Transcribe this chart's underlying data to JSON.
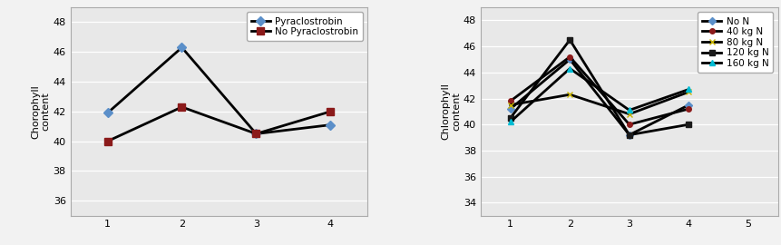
{
  "chart_a": {
    "ylabel": "Chorophyll\ncontent",
    "x": [
      1,
      2,
      3,
      4
    ],
    "series": [
      {
        "label": "Pyraclostrobin",
        "values": [
          41.9,
          46.3,
          40.5,
          41.1
        ],
        "color": "#000000",
        "marker": "D",
        "marker_facecolor": "#5b8fc9",
        "marker_edgecolor": "#5b8fc9",
        "linewidth": 2.0,
        "markersize": 5
      },
      {
        "label": "No Pyraclostrobin",
        "values": [
          40.0,
          42.3,
          40.5,
          42.0
        ],
        "color": "#000000",
        "marker": "s",
        "marker_facecolor": "#8b1a1a",
        "marker_edgecolor": "#8b1a1a",
        "linewidth": 2.0,
        "markersize": 6
      }
    ],
    "ylim": [
      35,
      49
    ],
    "yticks": [
      36,
      38,
      40,
      42,
      44,
      46,
      48
    ],
    "xlim": [
      0.5,
      4.5
    ],
    "xticks": [
      1,
      2,
      3,
      4
    ]
  },
  "chart_b": {
    "ylabel": "Chlorophyll\ncontent",
    "x": [
      1,
      2,
      3,
      4,
      5
    ],
    "series": [
      {
        "label": "No N",
        "values": [
          41.2,
          45.0,
          39.2,
          41.5,
          null
        ],
        "color": "#000000",
        "marker": "D",
        "marker_facecolor": "#5b8fc9",
        "marker_edgecolor": "#5b8fc9",
        "linewidth": 2.0,
        "markersize": 4
      },
      {
        "label": "40 kg N",
        "values": [
          41.8,
          45.2,
          40.0,
          41.2,
          null
        ],
        "color": "#000000",
        "marker": "o",
        "marker_facecolor": "#8b1a1a",
        "marker_edgecolor": "#8b1a1a",
        "linewidth": 2.0,
        "markersize": 4
      },
      {
        "label": "80 kg N",
        "values": [
          41.5,
          42.3,
          40.8,
          42.5,
          null
        ],
        "color": "#000000",
        "marker": "x",
        "marker_facecolor": "#c8b400",
        "marker_edgecolor": "#c8b400",
        "linewidth": 2.0,
        "markersize": 5
      },
      {
        "label": "120 kg N",
        "values": [
          40.5,
          46.5,
          39.2,
          40.0,
          null
        ],
        "color": "#000000",
        "marker": "s",
        "marker_facecolor": "#1a1a1a",
        "marker_edgecolor": "#1a1a1a",
        "linewidth": 2.0,
        "markersize": 5
      },
      {
        "label": "160 kg N",
        "values": [
          40.2,
          44.3,
          41.1,
          42.7,
          null
        ],
        "color": "#000000",
        "marker": "^",
        "marker_facecolor": "#00bcd4",
        "marker_edgecolor": "#00bcd4",
        "linewidth": 2.0,
        "markersize": 5
      }
    ],
    "ylim": [
      33,
      49
    ],
    "yticks": [
      34,
      36,
      38,
      40,
      42,
      44,
      46,
      48
    ],
    "xlim": [
      0.5,
      5.5
    ],
    "xticks": [
      1,
      2,
      3,
      4,
      5
    ]
  },
  "plot_bg": "#e8e8e8",
  "fig_bg": "#f2f2f2",
  "grid_color": "#ffffff",
  "tick_fontsize": 8,
  "label_fontsize": 8,
  "legend_fontsize": 7.5
}
